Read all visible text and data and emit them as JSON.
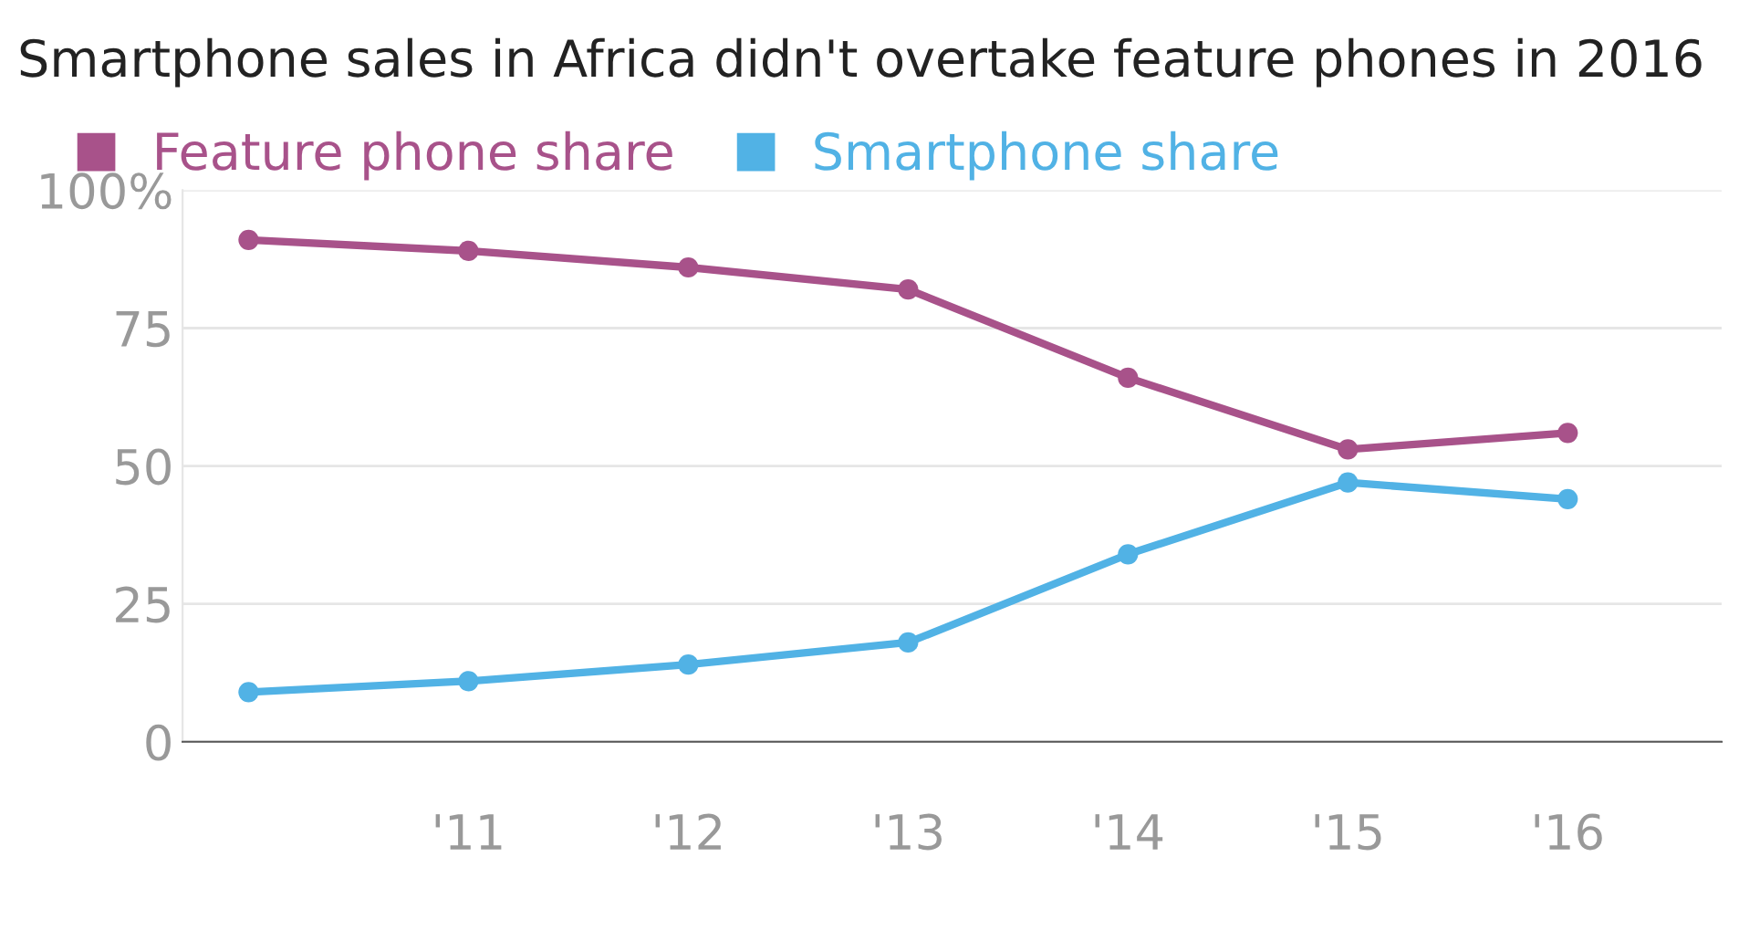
{
  "chart_data": {
    "type": "line",
    "title": "Smartphone sales in Africa didn't overtake feature phones in 2016",
    "categories": [
      null,
      "'11",
      "'12",
      "'13",
      "'14",
      "'15",
      "'16"
    ],
    "series": [
      {
        "name": "Feature phone share",
        "color": "#a8528a",
        "values": [
          91,
          89,
          86,
          82,
          66,
          53,
          56
        ]
      },
      {
        "name": "Smartphone share",
        "color": "#51b2e5",
        "values": [
          9,
          11,
          14,
          18,
          34,
          47,
          44
        ]
      }
    ],
    "ylim": [
      0,
      100
    ],
    "yticks": [
      0,
      25,
      50,
      75,
      {
        "value": 100,
        "label": "100%"
      }
    ],
    "grid": "y",
    "legend": "top left",
    "marker": "circle",
    "line_style": "solid"
  }
}
